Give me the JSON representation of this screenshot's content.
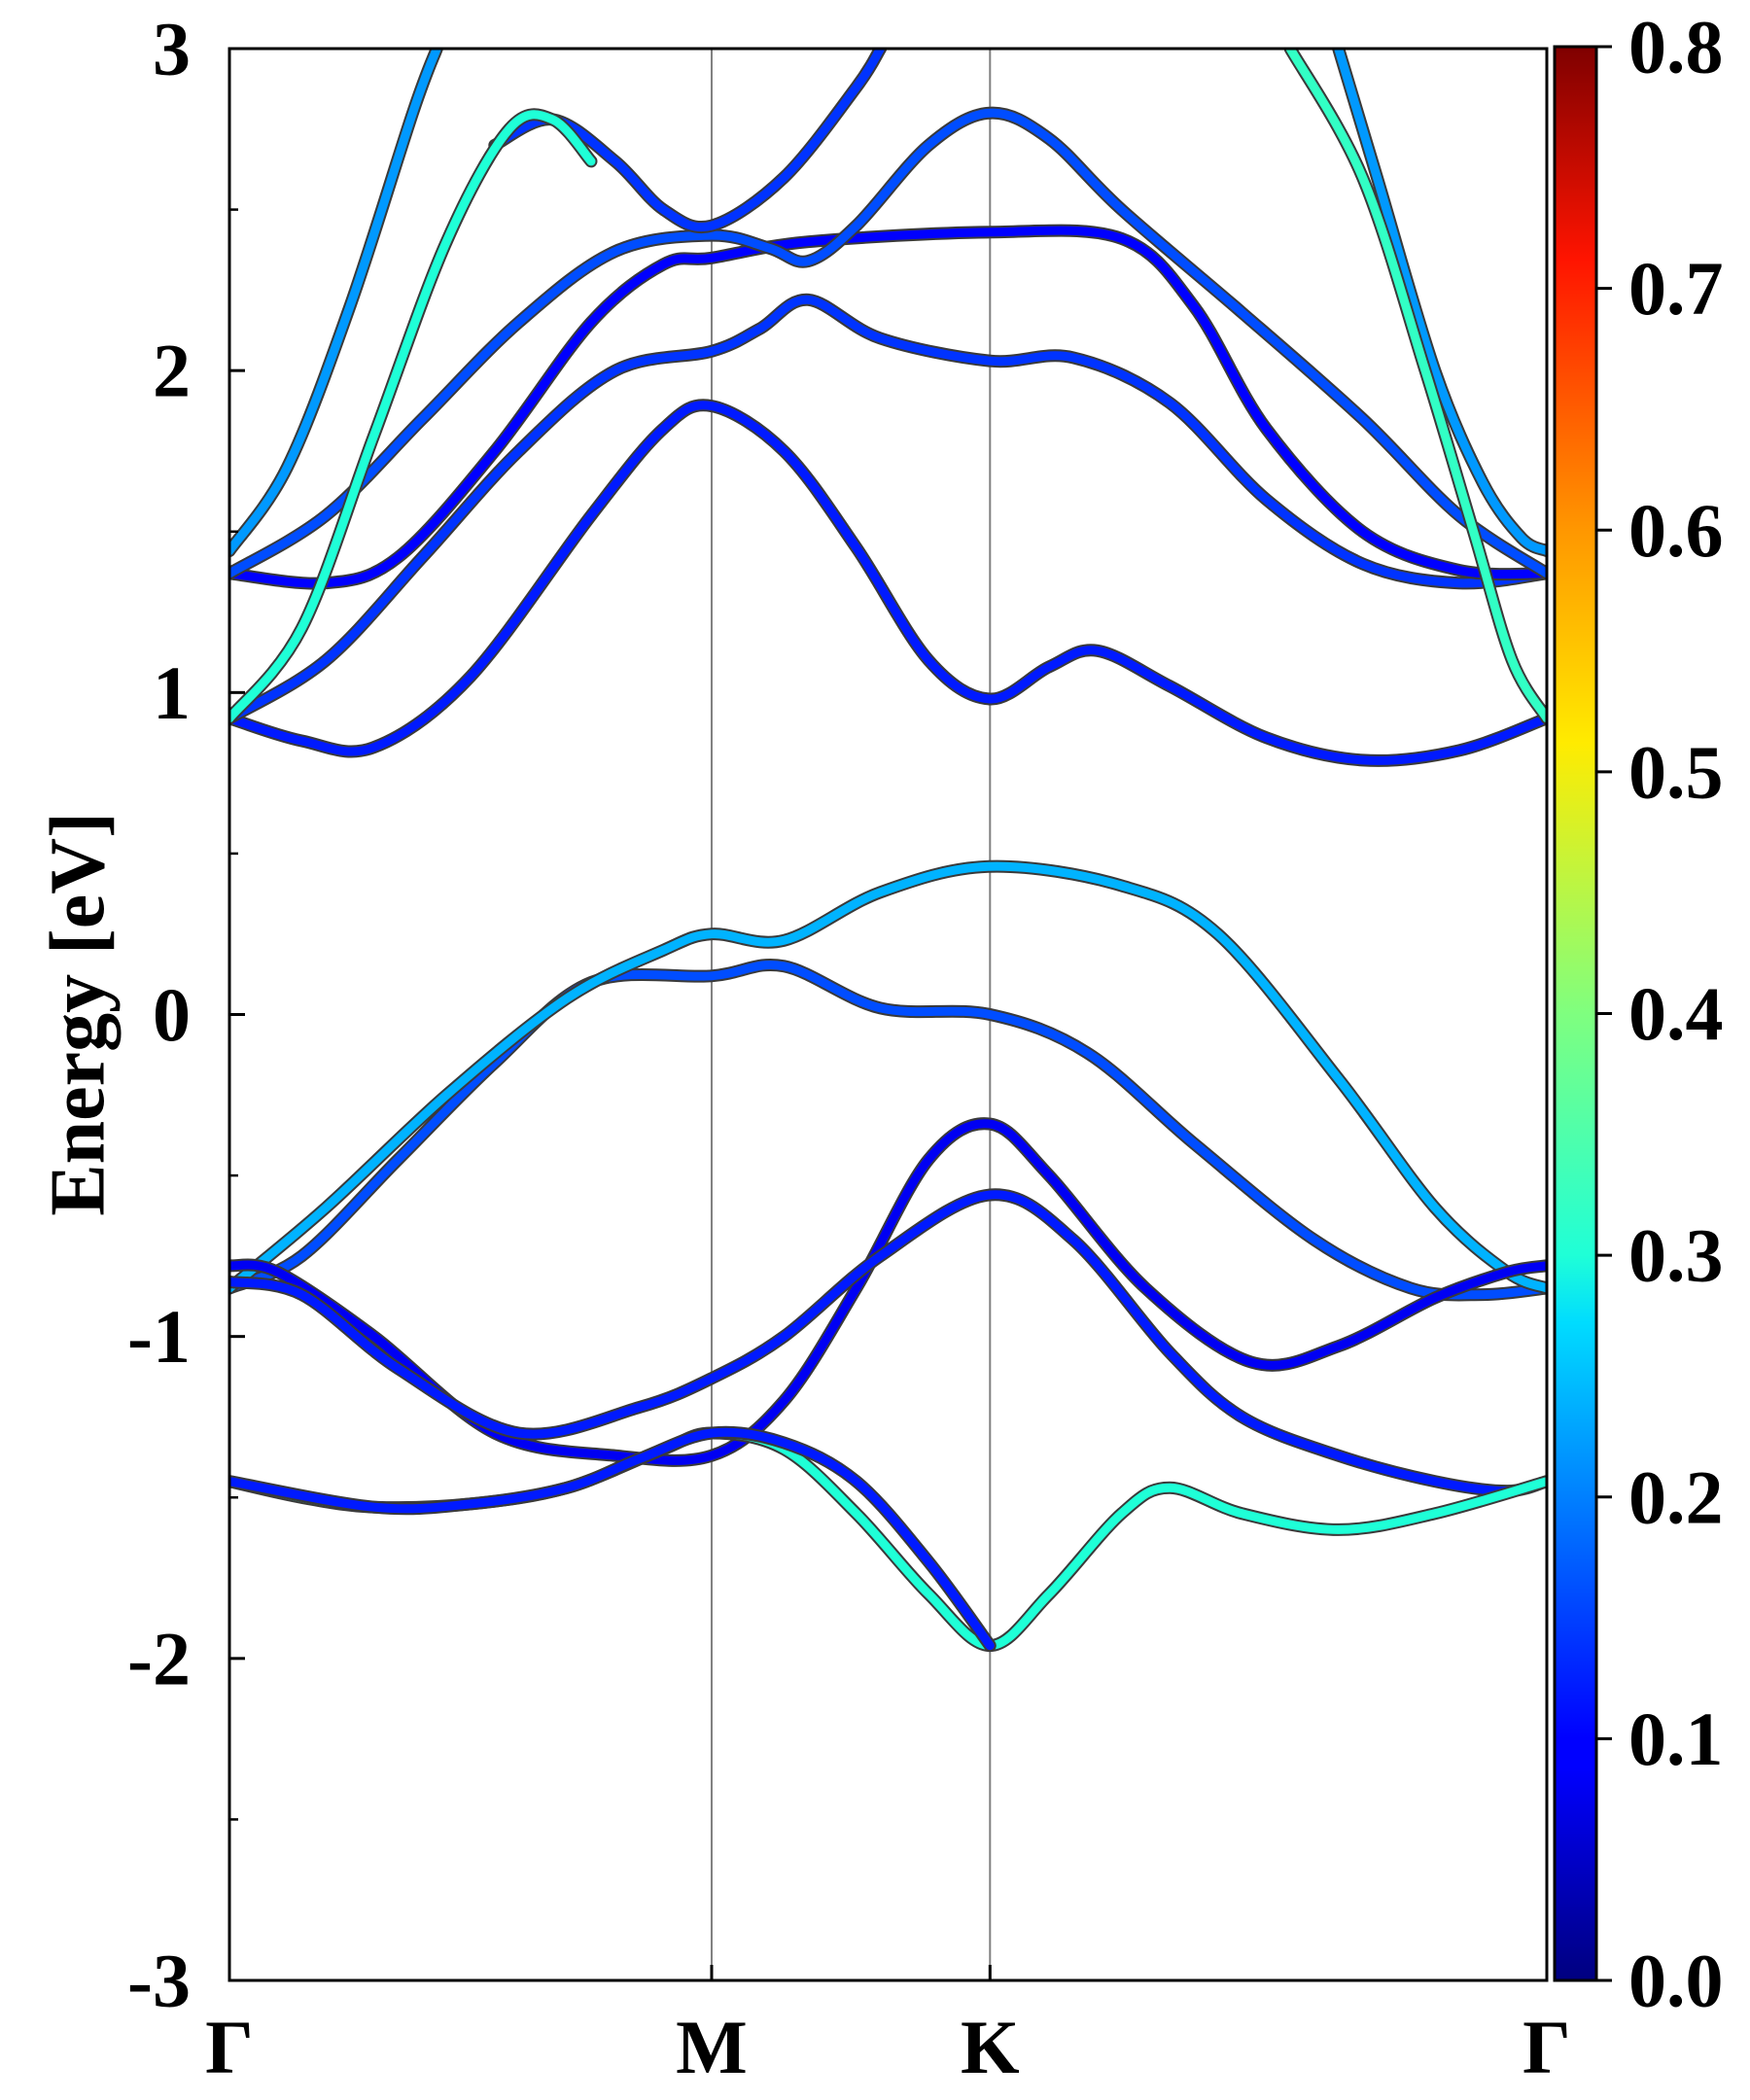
{
  "chart_data": {
    "type": "line",
    "title": "",
    "ylabel": "Energy [eV]",
    "xlabel": "",
    "ylim": [
      -3,
      3
    ],
    "yticks": [
      -3,
      -2,
      -1,
      0,
      1,
      2,
      3
    ],
    "ytick_labels": [
      "-3",
      "-2",
      "-1",
      "0",
      "1",
      "2",
      "3"
    ],
    "kpath": {
      "labels": [
        "Γ",
        "M",
        "K",
        "Γ"
      ],
      "positions": [
        0,
        1,
        1.5773,
        2.732
      ]
    },
    "grid": false,
    "colormap": "jet",
    "colorbar": {
      "range": [
        0.0,
        0.8
      ],
      "ticks": [
        0.0,
        0.1,
        0.2,
        0.3,
        0.4,
        0.5,
        0.6,
        0.7,
        0.8
      ],
      "tick_labels": [
        "0.0",
        "0.1",
        "0.2",
        "0.3",
        "0.4",
        "0.5",
        "0.6",
        "0.7",
        "0.8"
      ]
    },
    "series": [
      {
        "weight": 0.16,
        "points": [
          [
            0,
            -0.85
          ],
          [
            0.15,
            -0.75
          ],
          [
            0.35,
            -0.45
          ],
          [
            0.55,
            -0.15
          ],
          [
            0.75,
            0.1
          ],
          [
            1.0,
            0.12
          ],
          [
            1.15,
            0.15
          ],
          [
            1.35,
            0.02
          ],
          [
            1.5773,
            0.0
          ],
          [
            1.78,
            -0.12
          ],
          [
            2.0,
            -0.4
          ],
          [
            2.25,
            -0.7
          ],
          [
            2.45,
            -0.85
          ],
          [
            2.6,
            -0.87
          ],
          [
            2.732,
            -0.85
          ]
        ]
      },
      {
        "weight": 0.24,
        "points": [
          [
            0,
            -0.85
          ],
          [
            0.2,
            -0.6
          ],
          [
            0.45,
            -0.25
          ],
          [
            0.7,
            0.05
          ],
          [
            0.9,
            0.2
          ],
          [
            1.0,
            0.25
          ],
          [
            1.15,
            0.23
          ],
          [
            1.35,
            0.38
          ],
          [
            1.5773,
            0.46
          ],
          [
            1.85,
            0.4
          ],
          [
            2.05,
            0.25
          ],
          [
            2.3,
            -0.2
          ],
          [
            2.5,
            -0.6
          ],
          [
            2.65,
            -0.8
          ],
          [
            2.732,
            -0.85
          ]
        ]
      },
      {
        "weight": 0.08,
        "points": [
          [
            0,
            -0.78
          ],
          [
            0.1,
            -0.8
          ],
          [
            0.3,
            -1.0
          ],
          [
            0.55,
            -1.3
          ],
          [
            0.8,
            -1.37
          ],
          [
            1.0,
            -1.37
          ],
          [
            1.15,
            -1.2
          ],
          [
            1.3,
            -0.85
          ],
          [
            1.45,
            -0.45
          ],
          [
            1.5773,
            -0.34
          ],
          [
            1.7,
            -0.5
          ],
          [
            1.9,
            -0.85
          ],
          [
            2.12,
            -1.08
          ],
          [
            2.3,
            -1.03
          ],
          [
            2.5,
            -0.88
          ],
          [
            2.65,
            -0.8
          ],
          [
            2.732,
            -0.78
          ]
        ]
      },
      {
        "weight": 0.12,
        "points": [
          [
            0,
            -0.83
          ],
          [
            0.15,
            -0.87
          ],
          [
            0.35,
            -1.1
          ],
          [
            0.6,
            -1.3
          ],
          [
            0.85,
            -1.22
          ],
          [
            1.0,
            -1.13
          ],
          [
            1.15,
            -1.0
          ],
          [
            1.35,
            -0.75
          ],
          [
            1.5773,
            -0.56
          ],
          [
            1.75,
            -0.7
          ],
          [
            1.95,
            -1.05
          ],
          [
            2.1,
            -1.25
          ],
          [
            2.3,
            -1.37
          ],
          [
            2.5,
            -1.45
          ],
          [
            2.65,
            -1.48
          ],
          [
            2.732,
            -1.45
          ]
        ]
      },
      {
        "weight": 0.3,
        "points": [
          [
            0,
            -1.45
          ],
          [
            0.15,
            -1.5
          ],
          [
            0.3,
            -1.53
          ],
          [
            0.5,
            -1.52
          ],
          [
            0.7,
            -1.47
          ],
          [
            0.9,
            -1.35
          ],
          [
            1.0,
            -1.3
          ],
          [
            1.15,
            -1.35
          ],
          [
            1.3,
            -1.55
          ],
          [
            1.45,
            -1.8
          ],
          [
            1.5773,
            -1.96
          ],
          [
            1.7,
            -1.8
          ],
          [
            1.85,
            -1.55
          ],
          [
            1.95,
            -1.47
          ],
          [
            2.1,
            -1.55
          ],
          [
            2.3,
            -1.6
          ],
          [
            2.5,
            -1.55
          ],
          [
            2.732,
            -1.45
          ]
        ]
      },
      {
        "weight": 0.12,
        "points": [
          [
            0,
            -1.45
          ],
          [
            0.3,
            -1.53
          ],
          [
            0.5,
            -1.52
          ],
          [
            0.7,
            -1.47
          ],
          [
            0.85,
            -1.38
          ],
          [
            1.0,
            -1.3
          ],
          [
            1.15,
            -1.33
          ],
          [
            1.3,
            -1.45
          ],
          [
            1.45,
            -1.7
          ],
          [
            1.5773,
            -1.96
          ]
        ]
      },
      {
        "weight": 0.12,
        "points": [
          [
            0,
            0.92
          ],
          [
            0.15,
            0.85
          ],
          [
            0.3,
            0.83
          ],
          [
            0.5,
            1.05
          ],
          [
            0.75,
            1.55
          ],
          [
            0.9,
            1.82
          ],
          [
            1.0,
            1.89
          ],
          [
            1.15,
            1.75
          ],
          [
            1.3,
            1.45
          ],
          [
            1.45,
            1.1
          ],
          [
            1.5773,
            0.98
          ],
          [
            1.7,
            1.08
          ],
          [
            1.8,
            1.13
          ],
          [
            1.95,
            1.02
          ],
          [
            2.15,
            0.86
          ],
          [
            2.35,
            0.79
          ],
          [
            2.55,
            0.82
          ],
          [
            2.732,
            0.92
          ]
        ]
      },
      {
        "weight": 0.14,
        "points": [
          [
            0,
            0.92
          ],
          [
            0.2,
            1.1
          ],
          [
            0.4,
            1.42
          ],
          [
            0.6,
            1.75
          ],
          [
            0.8,
            2.0
          ],
          [
            1.0,
            2.06
          ],
          [
            1.1,
            2.13
          ],
          [
            1.2,
            2.22
          ],
          [
            1.35,
            2.1
          ],
          [
            1.5773,
            2.03
          ],
          [
            1.75,
            2.04
          ],
          [
            1.95,
            1.9
          ],
          [
            2.15,
            1.6
          ],
          [
            2.35,
            1.4
          ],
          [
            2.55,
            1.34
          ],
          [
            2.732,
            1.37
          ]
        ]
      },
      {
        "weight": 0.1,
        "points": [
          [
            0,
            1.37
          ],
          [
            0.2,
            1.34
          ],
          [
            0.35,
            1.42
          ],
          [
            0.55,
            1.75
          ],
          [
            0.75,
            2.15
          ],
          [
            0.9,
            2.33
          ],
          [
            1.0,
            2.35
          ],
          [
            1.2,
            2.4
          ],
          [
            1.5773,
            2.43
          ],
          [
            1.85,
            2.41
          ],
          [
            2.0,
            2.2
          ],
          [
            2.15,
            1.82
          ],
          [
            2.35,
            1.5
          ],
          [
            2.55,
            1.38
          ],
          [
            2.732,
            1.37
          ]
        ]
      },
      {
        "weight": 0.16,
        "points": [
          [
            0,
            1.37
          ],
          [
            0.2,
            1.55
          ],
          [
            0.4,
            1.85
          ],
          [
            0.6,
            2.15
          ],
          [
            0.8,
            2.37
          ],
          [
            1.0,
            2.42
          ],
          [
            1.12,
            2.38
          ],
          [
            1.2,
            2.34
          ],
          [
            1.3,
            2.45
          ],
          [
            1.45,
            2.7
          ],
          [
            1.5773,
            2.8
          ],
          [
            1.7,
            2.72
          ],
          [
            1.85,
            2.5
          ],
          [
            2.1,
            2.18
          ],
          [
            2.35,
            1.85
          ],
          [
            2.55,
            1.55
          ],
          [
            2.732,
            1.37
          ]
        ]
      },
      {
        "weight": 0.14,
        "points": [
          [
            0.55,
            2.7
          ],
          [
            0.67,
            2.78
          ],
          [
            0.8,
            2.65
          ],
          [
            0.9,
            2.5
          ],
          [
            1.0,
            2.45
          ],
          [
            1.15,
            2.6
          ],
          [
            1.3,
            2.88
          ],
          [
            1.35,
            3.0
          ]
        ]
      },
      {
        "weight": 0.22,
        "points": [
          [
            0,
            1.44
          ],
          [
            0.12,
            1.7
          ],
          [
            0.25,
            2.2
          ],
          [
            0.38,
            2.8
          ],
          [
            0.43,
            3.0
          ]
        ]
      },
      {
        "weight": 0.3,
        "points": [
          [
            0,
            0.92
          ],
          [
            0.15,
            1.2
          ],
          [
            0.3,
            1.8
          ],
          [
            0.45,
            2.4
          ],
          [
            0.58,
            2.75
          ],
          [
            0.67,
            2.78
          ],
          [
            0.75,
            2.65
          ]
        ]
      },
      {
        "weight": 0.22,
        "points": [
          [
            2.3,
            3.0
          ],
          [
            2.38,
            2.6
          ],
          [
            2.5,
            2.0
          ],
          [
            2.6,
            1.65
          ],
          [
            2.68,
            1.48
          ],
          [
            2.732,
            1.44
          ]
        ]
      },
      {
        "weight": 0.32,
        "points": [
          [
            2.2,
            3.0
          ],
          [
            2.35,
            2.6
          ],
          [
            2.48,
            2.0
          ],
          [
            2.58,
            1.5
          ],
          [
            2.66,
            1.1
          ],
          [
            2.732,
            0.92
          ]
        ]
      }
    ]
  }
}
